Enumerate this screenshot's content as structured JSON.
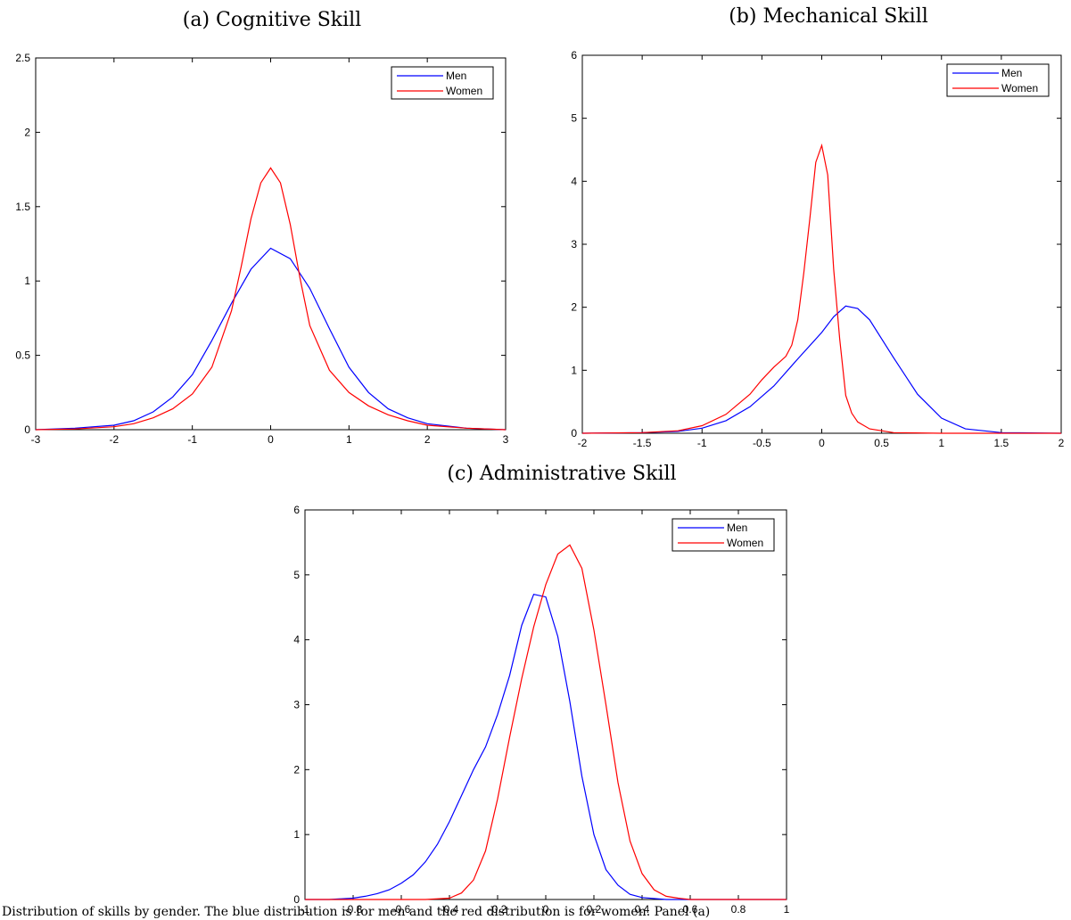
{
  "chart_data": [
    {
      "type": "line",
      "title": "(a) Cognitive Skill",
      "xlim": [
        -3,
        3
      ],
      "ylim": [
        0,
        2.5
      ],
      "xticks": [
        "-3",
        "-2",
        "-1",
        "0",
        "1",
        "2",
        "3"
      ],
      "yticks": [
        "0",
        "0.5",
        "1",
        "1.5",
        "2",
        "2.5"
      ],
      "legend_position": "top-right",
      "series": [
        {
          "name": "Men",
          "color": "#0000ff",
          "x": [
            -3,
            -2.5,
            -2,
            -1.75,
            -1.5,
            -1.25,
            -1,
            -0.75,
            -0.5,
            -0.25,
            0,
            0.25,
            0.5,
            0.75,
            1,
            1.25,
            1.5,
            1.75,
            2,
            2.5,
            3
          ],
          "y": [
            0.0,
            0.01,
            0.03,
            0.06,
            0.12,
            0.22,
            0.37,
            0.6,
            0.85,
            1.08,
            1.22,
            1.15,
            0.95,
            0.68,
            0.42,
            0.25,
            0.14,
            0.08,
            0.04,
            0.01,
            0.0
          ]
        },
        {
          "name": "Women",
          "color": "#ff0000",
          "x": [
            -3,
            -2.5,
            -2,
            -1.75,
            -1.5,
            -1.25,
            -1,
            -0.75,
            -0.5,
            -0.375,
            -0.25,
            -0.125,
            0,
            0.125,
            0.25,
            0.375,
            0.5,
            0.75,
            1,
            1.25,
            1.5,
            1.75,
            2,
            2.5,
            3
          ],
          "y": [
            0.0,
            0.005,
            0.02,
            0.04,
            0.08,
            0.14,
            0.24,
            0.42,
            0.8,
            1.1,
            1.42,
            1.66,
            1.76,
            1.66,
            1.38,
            1.02,
            0.7,
            0.4,
            0.25,
            0.16,
            0.1,
            0.06,
            0.03,
            0.01,
            0.0
          ]
        }
      ]
    },
    {
      "type": "line",
      "title": "(b) Mechanical Skill",
      "xlim": [
        -2,
        2
      ],
      "ylim": [
        0,
        6
      ],
      "xticks": [
        "-2",
        "-1.5",
        "-1",
        "-0.5",
        "0",
        "0.5",
        "1",
        "1.5",
        "2"
      ],
      "yticks": [
        "0",
        "1",
        "2",
        "3",
        "4",
        "5",
        "6"
      ],
      "legend_position": "top-right",
      "series": [
        {
          "name": "Men",
          "color": "#0000ff",
          "x": [
            -2,
            -1.5,
            -1.2,
            -1,
            -0.8,
            -0.6,
            -0.4,
            -0.2,
            0,
            0.1,
            0.2,
            0.3,
            0.4,
            0.6,
            0.8,
            1,
            1.2,
            1.5,
            2
          ],
          "y": [
            0.0,
            0.01,
            0.03,
            0.08,
            0.2,
            0.42,
            0.75,
            1.18,
            1.6,
            1.85,
            2.02,
            1.98,
            1.8,
            1.2,
            0.62,
            0.24,
            0.07,
            0.01,
            0.0
          ]
        },
        {
          "name": "Women",
          "color": "#ff0000",
          "x": [
            -2,
            -1.5,
            -1.2,
            -1,
            -0.8,
            -0.6,
            -0.5,
            -0.4,
            -0.3,
            -0.25,
            -0.2,
            -0.15,
            -0.1,
            -0.05,
            0,
            0.05,
            0.1,
            0.15,
            0.2,
            0.25,
            0.3,
            0.4,
            0.6,
            1,
            1.5,
            2
          ],
          "y": [
            0.0,
            0.01,
            0.04,
            0.12,
            0.3,
            0.62,
            0.85,
            1.05,
            1.22,
            1.4,
            1.8,
            2.55,
            3.4,
            4.3,
            4.57,
            4.1,
            2.6,
            1.5,
            0.6,
            0.32,
            0.18,
            0.07,
            0.01,
            0.0,
            0.0,
            0.0
          ]
        }
      ]
    },
    {
      "type": "line",
      "title": "(c) Administrative Skill",
      "xlim": [
        -1,
        1
      ],
      "ylim": [
        0,
        6
      ],
      "xticks": [
        "-1",
        "-0.8",
        "-0.6",
        "-0.4",
        "-0.2",
        "0",
        "0.2",
        "0.4",
        "0.6",
        "0.8",
        "1"
      ],
      "yticks": [
        "0",
        "1",
        "2",
        "3",
        "4",
        "5",
        "6"
      ],
      "legend_position": "top-right",
      "series": [
        {
          "name": "Men",
          "color": "#0000ff",
          "x": [
            -1,
            -0.9,
            -0.8,
            -0.75,
            -0.7,
            -0.65,
            -0.6,
            -0.55,
            -0.5,
            -0.45,
            -0.4,
            -0.35,
            -0.3,
            -0.25,
            -0.2,
            -0.15,
            -0.1,
            -0.05,
            0,
            0.05,
            0.1,
            0.15,
            0.2,
            0.25,
            0.3,
            0.35,
            0.4,
            0.5,
            0.6,
            1
          ],
          "y": [
            0.0,
            0.0,
            0.02,
            0.05,
            0.09,
            0.15,
            0.25,
            0.38,
            0.58,
            0.85,
            1.2,
            1.6,
            2.0,
            2.35,
            2.85,
            3.45,
            4.22,
            4.7,
            4.66,
            4.05,
            3.05,
            1.9,
            1.0,
            0.46,
            0.22,
            0.08,
            0.03,
            0.0,
            0.0,
            0.0
          ]
        },
        {
          "name": "Women",
          "color": "#ff0000",
          "x": [
            -1,
            -0.5,
            -0.4,
            -0.35,
            -0.3,
            -0.25,
            -0.2,
            -0.15,
            -0.1,
            -0.05,
            0,
            0.05,
            0.1,
            0.15,
            0.2,
            0.25,
            0.3,
            0.35,
            0.4,
            0.45,
            0.5,
            0.55,
            0.6,
            1
          ],
          "y": [
            0.0,
            0.0,
            0.02,
            0.1,
            0.3,
            0.75,
            1.55,
            2.5,
            3.4,
            4.2,
            4.85,
            5.32,
            5.46,
            5.1,
            4.15,
            3.0,
            1.8,
            0.9,
            0.4,
            0.15,
            0.05,
            0.02,
            0.0,
            0.0
          ]
        }
      ]
    }
  ],
  "caption": {
    "text": "Distribution of skills by gender. The blue distribution is for men and the red distribution is for women. Panel (a)"
  }
}
